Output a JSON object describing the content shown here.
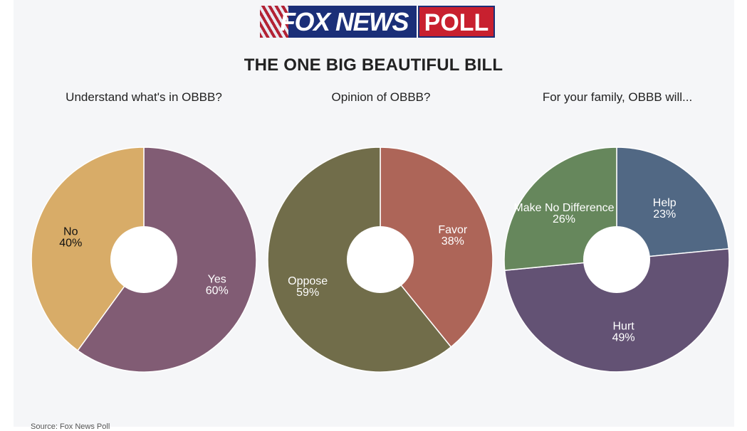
{
  "header": {
    "logo_text": "FOX NEWS",
    "logo_poll": "POLL",
    "title": "THE ONE BIG BEAUTIFUL BILL"
  },
  "colors": {
    "no": "#d8ac68",
    "yes": "#815c74",
    "oppose": "#716d4a",
    "favor": "#ad6558",
    "make_no_difference": "#66875c",
    "help": "#516884",
    "hurt": "#635274",
    "background": "#f5f6f8"
  },
  "chart_data": [
    {
      "type": "pie",
      "title": "Understand what's in OBBB?",
      "categories": [
        "Yes",
        "No"
      ],
      "values": [
        60,
        40
      ],
      "colors": [
        "#815c74",
        "#d8ac68"
      ],
      "label_colors": [
        "#ffffff",
        "#111111"
      ]
    },
    {
      "type": "pie",
      "title": "Opinion of OBBB?",
      "categories": [
        "Favor",
        "Oppose"
      ],
      "values": [
        38,
        59
      ],
      "colors": [
        "#ad6558",
        "#716d4a"
      ],
      "label_colors": [
        "#ffffff",
        "#ffffff"
      ]
    },
    {
      "type": "pie",
      "title": "For your family, OBBB will...",
      "categories": [
        "Help",
        "Hurt",
        "Make No Difference"
      ],
      "values": [
        23,
        49,
        26
      ],
      "colors": [
        "#516884",
        "#635274",
        "#66875c"
      ],
      "label_colors": [
        "#ffffff",
        "#ffffff",
        "#ffffff"
      ]
    }
  ],
  "footer": {
    "source": "Source: Fox News Poll"
  }
}
